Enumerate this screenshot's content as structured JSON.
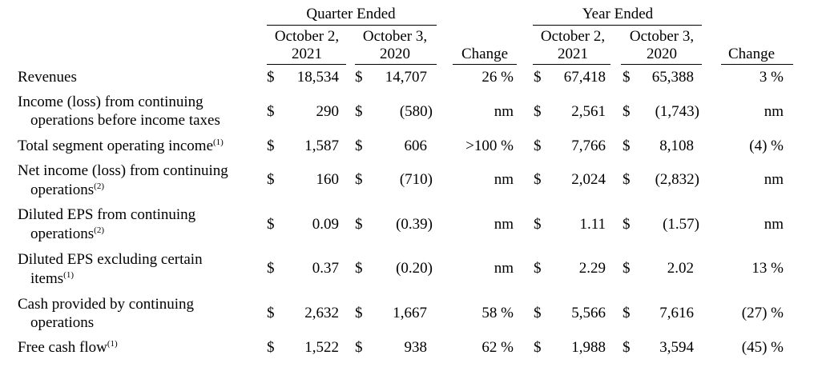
{
  "table": {
    "currency": "$",
    "groups": [
      "Quarter Ended",
      "Year Ended"
    ],
    "columns": [
      [
        "October 2,",
        "2021"
      ],
      [
        "October 3,",
        "2020"
      ],
      [
        "Change"
      ],
      [
        "October 2,",
        "2021"
      ],
      [
        "October 3,",
        "2020"
      ],
      [
        "Change"
      ]
    ],
    "rows": [
      {
        "label": [
          "Revenues"
        ],
        "cells": [
          "18,534",
          "14,707",
          "26 %",
          "67,418",
          "65,388",
          "3 %"
        ]
      },
      {
        "label": [
          "Income (loss) from continuing",
          "operations before income taxes"
        ],
        "cells": [
          "290",
          "(580)",
          "nm",
          "2,561",
          "(1,743)",
          "nm"
        ]
      },
      {
        "label": [
          "Total segment operating income"
        ],
        "note": "(1)",
        "cells": [
          "1,587",
          "606",
          ">100 %",
          "7,766",
          "8,108",
          "(4) %"
        ]
      },
      {
        "label": [
          "Net income (loss) from continuing",
          "operations"
        ],
        "note": "(2)",
        "cells": [
          "160",
          "(710)",
          "nm",
          "2,024",
          "(2,832)",
          "nm"
        ]
      },
      {
        "label": [
          "Diluted EPS from continuing",
          "operations"
        ],
        "note": "(2)",
        "cells": [
          "0.09",
          "(0.39)",
          "nm",
          "1.11",
          "(1.57)",
          "nm"
        ]
      },
      {
        "label": [
          "Diluted EPS excluding certain",
          "items"
        ],
        "note": "(1)",
        "cells": [
          "0.37",
          "(0.20)",
          "nm",
          "2.29",
          "2.02",
          "13 %"
        ]
      },
      {
        "label": [
          "Cash provided by continuing",
          "operations"
        ],
        "cells": [
          "2,632",
          "1,667",
          "58 %",
          "5,566",
          "7,616",
          "(27) %"
        ]
      },
      {
        "label": [
          "Free cash flow"
        ],
        "note": "(1)",
        "cells": [
          "1,522",
          "938",
          "62 %",
          "1,988",
          "3,594",
          "(45) %"
        ]
      }
    ]
  }
}
